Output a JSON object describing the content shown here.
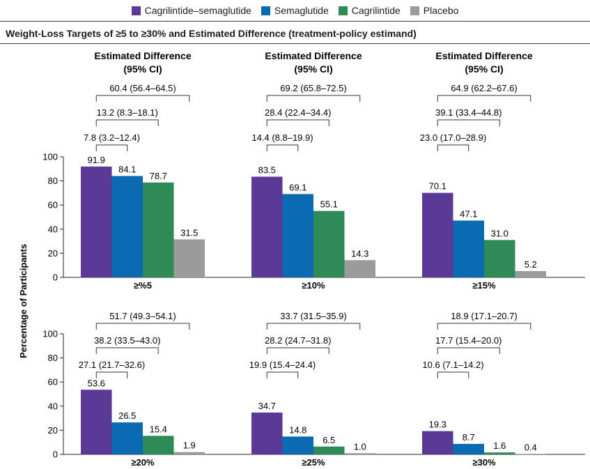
{
  "legend": [
    {
      "name": "Cagrilintide–semaglutide",
      "color": "#5b3a97"
    },
    {
      "name": "Semaglutide",
      "color": "#0a6bb3"
    },
    {
      "name": "Cagrilintide",
      "color": "#2e8b57"
    },
    {
      "name": "Placebo",
      "color": "#9b9b9b"
    }
  ],
  "subtitle": "Weight-Loss Targets of ≥5 to ≥30% and Estimated Difference (treatment-policy estimand)",
  "chart_data": {
    "type": "bar",
    "title": "Weight-Loss Targets of ≥5 to ≥30% and Estimated Difference (treatment-policy estimand)",
    "ylabel": "Percentage of Participants",
    "ylim": [
      0,
      100
    ],
    "yticks": [
      0,
      20,
      40,
      60,
      80,
      100
    ],
    "series_names": [
      "Cagrilintide–semaglutide",
      "Semaglutide",
      "Cagrilintide",
      "Placebo"
    ],
    "series_colors": [
      "#5b3a97",
      "#0a6bb3",
      "#2e8b57",
      "#9b9b9b"
    ],
    "diff_header": [
      "Estimated Difference",
      "(95% CI)"
    ],
    "groups": [
      {
        "label": "≥%5",
        "values": [
          91.9,
          84.1,
          78.7,
          31.5
        ],
        "value_labels": [
          "91.9",
          "84.1",
          "78.7",
          "31.5"
        ],
        "diffs": [
          "60.4 (56.4–64.5)",
          "13.2 (8.3–18.1)",
          "7.8 (3.2–12.4)"
        ],
        "show_header": true
      },
      {
        "label": "≥10%",
        "values": [
          83.5,
          69.1,
          55.1,
          14.3
        ],
        "value_labels": [
          "83.5",
          "69.1",
          "55.1",
          "14.3"
        ],
        "diffs": [
          "69.2 (65.8–72.5)",
          "28.4 (22.4–34.4)",
          "14.4 (8.8–19.9)"
        ],
        "show_header": true
      },
      {
        "label": "≥15%",
        "values": [
          70.1,
          47.1,
          31.0,
          5.2
        ],
        "value_labels": [
          "70.1",
          "47.1",
          "31.0",
          "5.2"
        ],
        "diffs": [
          "64.9 (62.2–67.6)",
          "39.1 (33.4–44.8)",
          "23.0 (17.0–28.9)"
        ],
        "show_header": true
      },
      {
        "label": "≥20%",
        "values": [
          53.6,
          26.5,
          15.4,
          1.9
        ],
        "value_labels": [
          "53.6",
          "26.5",
          "15.4",
          "1.9"
        ],
        "diffs": [
          "51.7 (49.3–54.1)",
          "38.2 (33.5–43.0)",
          "27.1 (21.7–32.6)"
        ],
        "show_header": false
      },
      {
        "label": "≥25%",
        "values": [
          34.7,
          14.8,
          6.5,
          1.0
        ],
        "value_labels": [
          "34.7",
          "14.8",
          "6.5",
          "1.0"
        ],
        "diffs": [
          "33.7 (31.5–35.9)",
          "28.2 (24.7–31.8)",
          "19.9 (15.4–24.4)"
        ],
        "show_header": false
      },
      {
        "label": "≥30%",
        "values": [
          19.3,
          8.7,
          1.6,
          0.4
        ],
        "value_labels": [
          "19.3",
          "8.7",
          "1.6",
          "0.4"
        ],
        "diffs": [
          "18.9 (17.1–20.7)",
          "17.7 (15.4–20.0)",
          "10.6 (7.1–14.2)"
        ],
        "show_header": false
      }
    ]
  }
}
